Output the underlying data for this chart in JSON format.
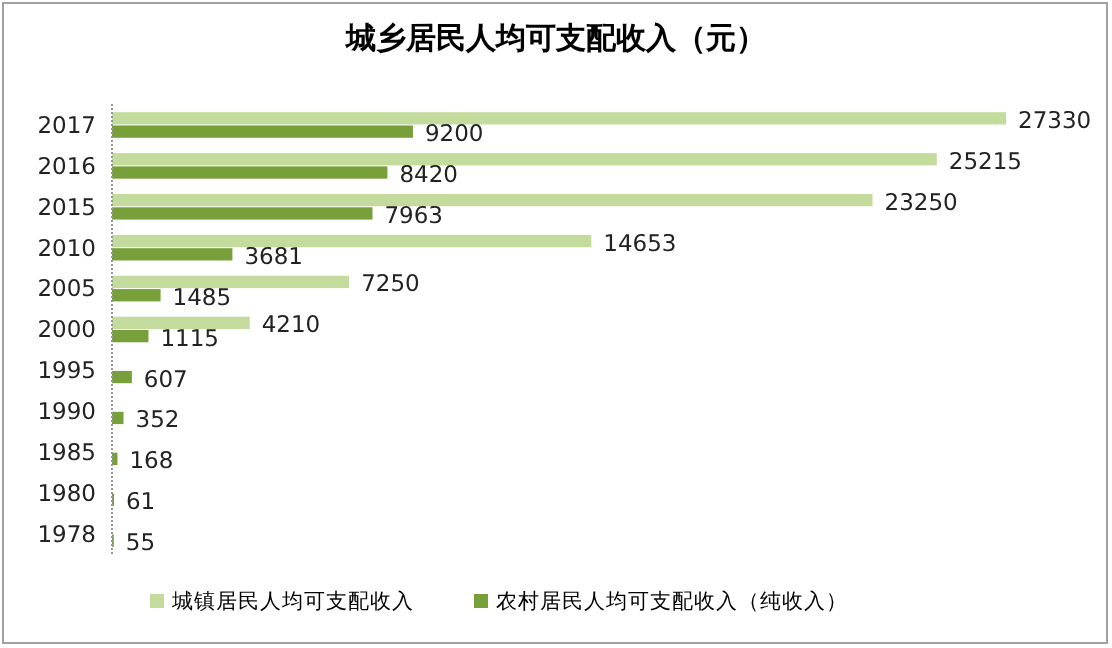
{
  "chart_data": {
    "type": "bar",
    "orientation": "horizontal",
    "title": "城乡居民人均可支配收入（元）",
    "categories": [
      "2017",
      "2016",
      "2015",
      "2010",
      "2005",
      "2000",
      "1995",
      "1990",
      "1985",
      "1980",
      "1978"
    ],
    "series": [
      {
        "name": "城镇居民人均可支配收入",
        "color": "#c3dc9e",
        "values": [
          27330,
          25215,
          23250,
          14653,
          7250,
          4210,
          null,
          null,
          null,
          null,
          null
        ]
      },
      {
        "name": "农村居民人均可支配收入（纯收入）",
        "color": "#77a03a",
        "values": [
          9200,
          8420,
          7963,
          3681,
          1485,
          1115,
          607,
          352,
          168,
          61,
          55
        ]
      }
    ],
    "data_labels": true,
    "legend": "bottom",
    "grid": false
  }
}
